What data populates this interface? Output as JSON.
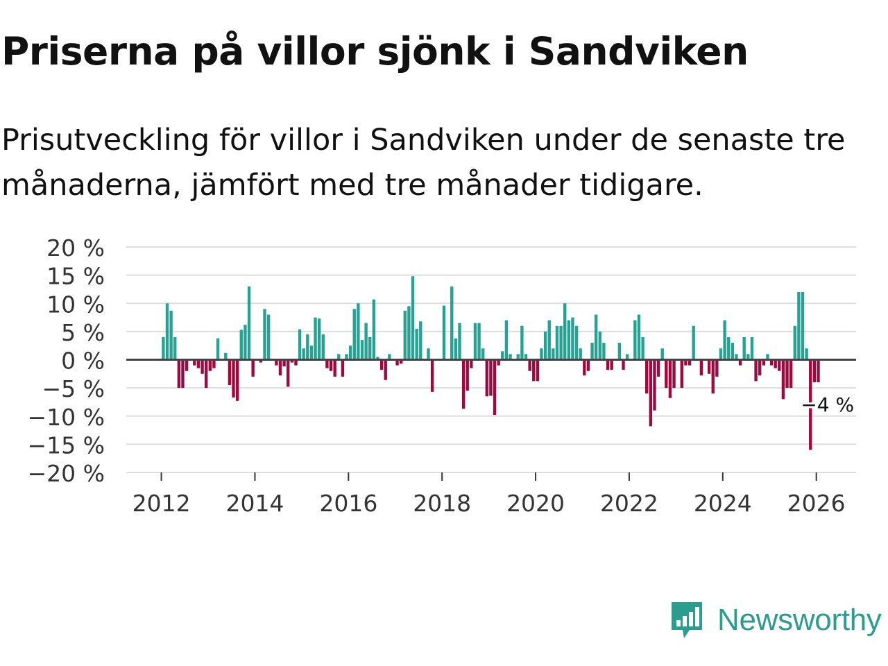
{
  "title": "Priserna på villor sjönk i Sandviken",
  "subtitle": "Prisutveckling för villor i Sandviken under de senaste tre månaderna, jämfört med tre månader tidigare.",
  "brand": "Newsworthy",
  "colors": {
    "positive": "#24a394",
    "negative": "#a4073e",
    "grid": "#dddddd",
    "zero": "#444444",
    "brand": "#2a9d8f"
  },
  "chart_data": {
    "type": "bar",
    "title": "Priserna på villor sjönk i Sandviken",
    "ylim": [
      -20,
      20
    ],
    "yticks": [
      20,
      15,
      10,
      5,
      0,
      -5,
      -10,
      -15,
      -20
    ],
    "ytick_labels": [
      "20 %",
      "15 %",
      "10 %",
      "5 %",
      "0 %",
      "−5 %",
      "−10 %",
      "−15 %",
      "−20 %"
    ],
    "xlim": [
      2011.25,
      2026.85
    ],
    "xticks": [
      2012,
      2014,
      2016,
      2018,
      2020,
      2022,
      2024,
      2026
    ],
    "xtick_labels": [
      "2012",
      "2014",
      "2016",
      "2018",
      "2020",
      "2022",
      "2024",
      "2026"
    ],
    "start": "2012-01",
    "values": [
      4,
      10,
      8.7,
      4,
      -5,
      -5,
      -2,
      0,
      -1,
      -1.5,
      -2.5,
      -5,
      -2,
      -1.5,
      3.8,
      0,
      1.2,
      -4.5,
      -6.7,
      -7.3,
      5.3,
      6.2,
      13,
      -3,
      0,
      -0.5,
      9,
      8,
      0,
      -1,
      -2.8,
      -1.2,
      -4.8,
      -0.5,
      -1,
      5.4,
      2,
      4.5,
      2.5,
      7.5,
      7.3,
      4.5,
      -1.5,
      -2,
      -3,
      1,
      -3,
      1,
      2.5,
      9,
      10,
      3.5,
      6.5,
      4,
      10.7,
      0.5,
      -1.8,
      -3.6,
      1,
      0,
      -1,
      -0.7,
      8.7,
      9.5,
      14.8,
      5.5,
      6.8,
      0,
      2,
      -5.7,
      0,
      0,
      9.6,
      0,
      13,
      3.8,
      6.5,
      -8.7,
      -5.5,
      -1.5,
      6.5,
      6.5,
      2,
      -6.5,
      -6.4,
      -9.8,
      -1,
      1.5,
      7,
      1,
      0,
      1,
      6,
      1,
      -2,
      -3.8,
      -3.8,
      2,
      5,
      7,
      2,
      6,
      6,
      10,
      7,
      7.5,
      6,
      2,
      -2.8,
      -2,
      3,
      8,
      5,
      3,
      -1.8,
      -1.8,
      0,
      3,
      -1.8,
      1,
      0,
      7,
      8,
      4,
      -6,
      -11.8,
      -9,
      -3,
      2,
      -5,
      -6.8,
      -5,
      0,
      -5,
      -1,
      -1,
      6,
      0,
      -2.8,
      0,
      -2.5,
      -6,
      -3,
      2,
      7,
      4,
      3,
      1,
      -1,
      4,
      1,
      4,
      -3.8,
      -2.8,
      -1,
      1,
      -1,
      -1.5,
      -2,
      -7,
      -5,
      -5,
      6,
      12,
      12,
      2,
      -16,
      -4,
      -4
    ],
    "annotation": {
      "label": "−4 %",
      "value": -4,
      "month": "2026-03"
    }
  }
}
